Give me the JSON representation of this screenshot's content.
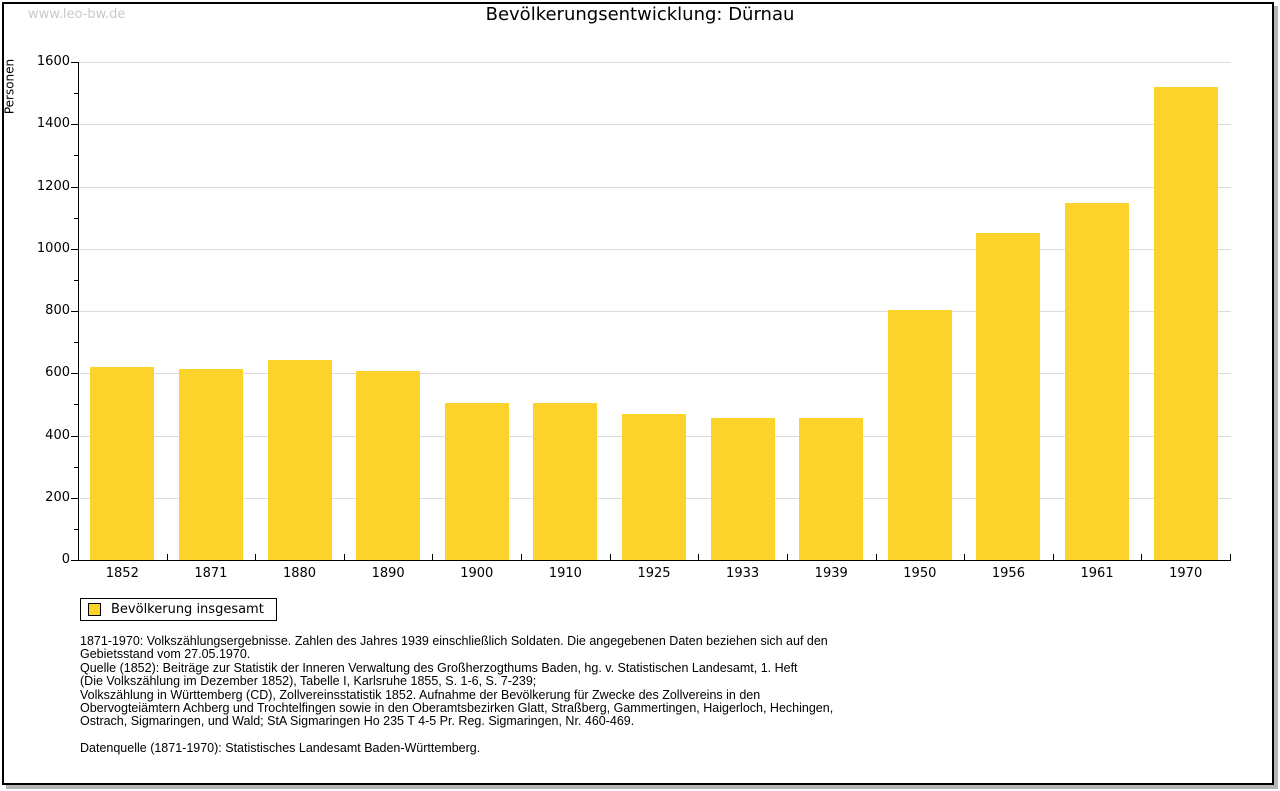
{
  "watermark": "www.leo-bw.de",
  "title": "Bevölkerungsentwicklung: Dürnau",
  "legend": {
    "label": "Bevölkerung insgesamt",
    "swatch_color": "#FCD32B"
  },
  "footer": {
    "lines": [
      "1871-1970: Volkszählungsergebnisse. Zahlen des Jahres 1939 einschließlich Soldaten. Die angegebenen Daten beziehen sich auf den",
      "Gebietsstand vom 27.05.1970.",
      "Quelle (1852): Beiträge zur Statistik der Inneren Verwaltung des Großherzogthums Baden, hg. v. Statistischen Landesamt, 1. Heft",
      "(Die Volkszählung im Dezember 1852), Tabelle I, Karlsruhe 1855, S. 1-6, S. 7-239;",
      "Volkszählung in Württemberg (CD), Zollvereinsstatistik 1852. Aufnahme der Bevölkerung für Zwecke des Zollvereins in den",
      "Obervogteiämtern Achberg und Trochtelfingen sowie in den Oberamtsbezirken Glatt, Straßberg, Gammertingen, Haigerloch, Hechingen,",
      "Ostrach, Sigmaringen, und Wald; StA Sigmaringen Ho 235 T 4-5 Pr. Reg. Sigmaringen, Nr. 460-469."
    ],
    "datasource": "Datenquelle (1871-1970): Statistisches Landesamt Baden-Württemberg."
  },
  "chart_data": {
    "type": "bar",
    "title": "Bevölkerungsentwicklung: Dürnau",
    "series_name": "Bevölkerung insgesamt",
    "categories": [
      "1852",
      "1871",
      "1880",
      "1890",
      "1900",
      "1910",
      "1925",
      "1933",
      "1939",
      "1950",
      "1956",
      "1961",
      "1970"
    ],
    "values": [
      620,
      614,
      642,
      607,
      505,
      506,
      470,
      455,
      457,
      804,
      1052,
      1146,
      1520
    ],
    "xlabel": "",
    "ylabel": "Personen",
    "ylim": [
      0,
      1600
    ],
    "ytick_step": 200,
    "minor_tick_step": 100,
    "grid": true,
    "legend_position": "bottom-left",
    "bar_color": "#FCD32B",
    "grid_color": "#DCDCDC",
    "axis_color": "#000000"
  }
}
